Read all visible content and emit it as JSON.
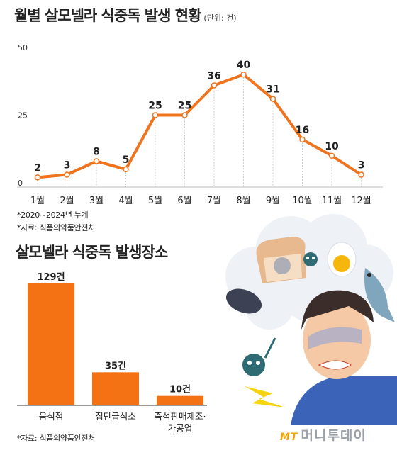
{
  "line_chart": {
    "title": "월별 살모넬라 식중독 발생 현황",
    "unit": "(단위: 건)",
    "notes": [
      "*2020~2024년 누계",
      "*자료: 식품의약품안전처"
    ]
  },
  "bar_chart": {
    "title": "살모넬라 식중독 발생장소",
    "source": "*자료: 식품의약품안전처"
  },
  "watermark": {
    "brand_mark": "MT",
    "brand_name": "머니투데이"
  },
  "colors": {
    "accent": "#f0731e",
    "text": "#222222",
    "grid": "#cccccc",
    "bar": "#f47214"
  },
  "chart_data": [
    {
      "type": "line",
      "title": "월별 살모넬라 식중독 발생 현황",
      "unit": "건",
      "categories": [
        "1월",
        "2월",
        "3월",
        "4월",
        "5월",
        "6월",
        "7월",
        "8월",
        "9월",
        "10월",
        "11월",
        "12월"
      ],
      "series": [
        {
          "values": [
            2,
            3,
            8,
            5,
            25,
            25,
            36,
            40,
            31,
            16,
            10,
            3
          ]
        }
      ],
      "yticks": [
        "0",
        "25",
        "50"
      ],
      "ylim": [
        0,
        50
      ],
      "grid": "dotted vertical guides"
    },
    {
      "type": "bar",
      "title": "살모넬라 식중독 발생장소",
      "categories": [
        "음식점",
        "집단급식소",
        "즉석판매제조·가공업"
      ],
      "values": [
        129,
        35,
        10
      ],
      "value_labels": [
        "129건",
        "35건",
        "10건"
      ]
    }
  ]
}
